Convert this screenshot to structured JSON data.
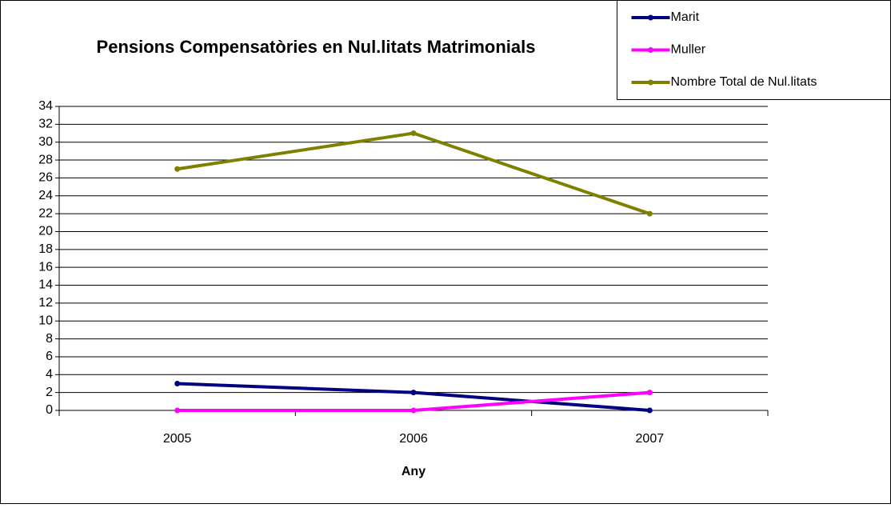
{
  "chart_data": {
    "type": "line",
    "title": "Pensions Compensatòries en Nul.litats Matrimonials",
    "x_label": "Any",
    "categories": [
      "2005",
      "2006",
      "2007"
    ],
    "series": [
      {
        "name": "Marit",
        "color": "#000080",
        "values": [
          3,
          2,
          0
        ]
      },
      {
        "name": "Muller",
        "color": "#ff00ff",
        "values": [
          0,
          0,
          2
        ]
      },
      {
        "name": "Nombre Total de Nul.litats",
        "color": "#808000",
        "values": [
          27,
          31,
          22
        ]
      }
    ],
    "ylim": [
      0,
      34
    ],
    "yticks": [
      0,
      2,
      4,
      6,
      8,
      10,
      12,
      14,
      16,
      18,
      20,
      22,
      24,
      26,
      28,
      30,
      32,
      34
    ],
    "grid": true,
    "legend": "top-right"
  }
}
